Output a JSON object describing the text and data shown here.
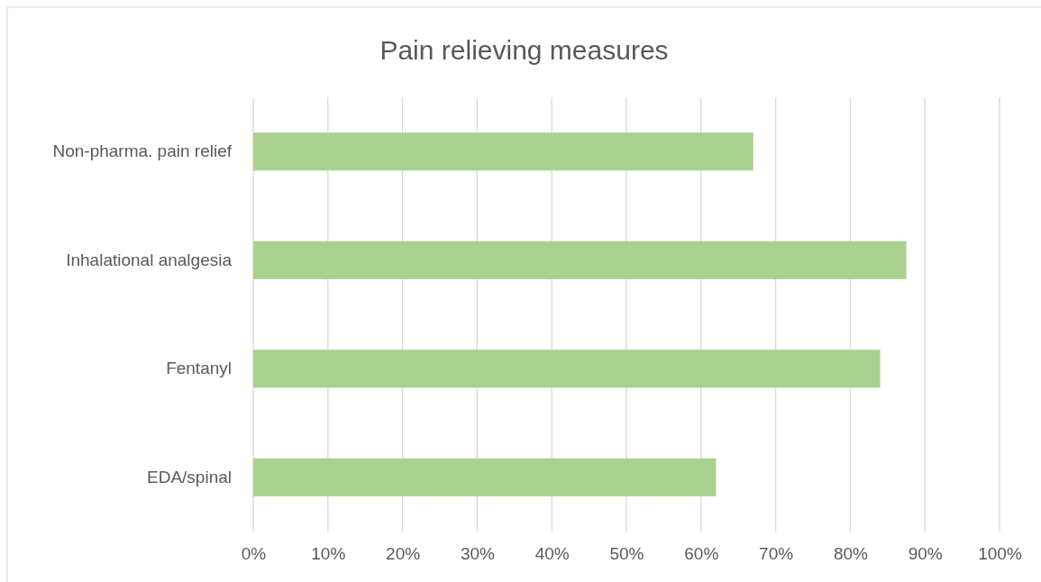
{
  "chart_data": {
    "type": "bar",
    "orientation": "horizontal",
    "title": "Pain relieving measures",
    "categories": [
      "Non-pharma. pain relief",
      "Inhalational analgesia",
      "Fentanyl",
      "EDA/spinal"
    ],
    "values": [
      67,
      87.5,
      84,
      62
    ],
    "color": "#a9d18e",
    "xlim": [
      0,
      100
    ],
    "xticks": [
      {
        "value": 0,
        "label": "0%"
      },
      {
        "value": 10,
        "label": "10%"
      },
      {
        "value": 20,
        "label": "20%"
      },
      {
        "value": 30,
        "label": "30%"
      },
      {
        "value": 40,
        "label": "40%"
      },
      {
        "value": 50,
        "label": "50%"
      },
      {
        "value": 60,
        "label": "60%"
      },
      {
        "value": 70,
        "label": "70%"
      },
      {
        "value": 80,
        "label": "80%"
      },
      {
        "value": 90,
        "label": "90%"
      },
      {
        "value": 100,
        "label": "100%"
      }
    ],
    "grid": "x"
  }
}
